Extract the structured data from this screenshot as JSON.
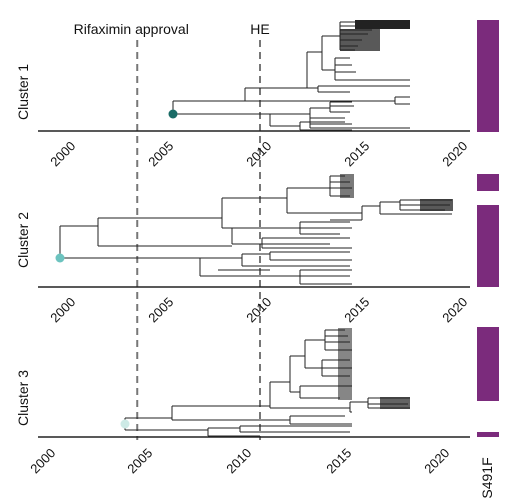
{
  "events": [
    {
      "label": "Rifaximin approval",
      "year": 2003.8
    },
    {
      "label": "HE",
      "year": 2010.0
    }
  ],
  "track_label": "S491F",
  "colors": {
    "track": "#7b2b7c",
    "node_cluster1": "#1a6b66",
    "node_cluster2": "#6cc3bf",
    "node_cluster3": "#cdeae6",
    "dashed": "#777777",
    "axis": "#222222"
  },
  "clusters": [
    {
      "label": "Cluster 1",
      "ticks": [
        "2000",
        "2005",
        "2010",
        "2015",
        "2020"
      ],
      "root_year": 2005.6
    },
    {
      "label": "Cluster 2",
      "ticks": [
        "2000",
        "2005",
        "2010",
        "2015",
        "2020"
      ],
      "root_year": 2000.1
    },
    {
      "label": "Cluster 3",
      "ticks": [
        "2000",
        "2005",
        "2010",
        "2015",
        "2020"
      ],
      "root_year": 2003.5
    }
  ]
}
